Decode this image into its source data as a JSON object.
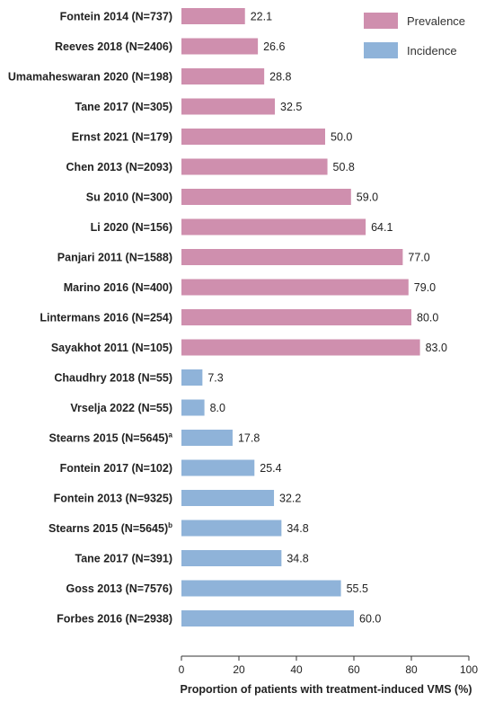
{
  "chart_data": {
    "type": "bar",
    "orientation": "horizontal",
    "xlabel": "Proportion of patients with treatment-induced VMS (%)",
    "xlim": [
      0,
      100
    ],
    "xticks": [
      0,
      20,
      40,
      60,
      80,
      100
    ],
    "legend": {
      "placement": "top-right",
      "entries": [
        {
          "name": "Prevalence",
          "color": "#cf8fae"
        },
        {
          "name": "Incidence",
          "color": "#8fb3d9"
        }
      ]
    },
    "categories": [
      {
        "label": "Fontein 2014 (N=737)",
        "sup": "",
        "value": 22.1,
        "value_label": "22.1",
        "group": "Prevalence"
      },
      {
        "label": "Reeves 2018 (N=2406)",
        "sup": "",
        "value": 26.6,
        "value_label": "26.6",
        "group": "Prevalence"
      },
      {
        "label": "Umamaheswaran 2020 (N=198)",
        "sup": "",
        "value": 28.8,
        "value_label": "28.8",
        "group": "Prevalence"
      },
      {
        "label": "Tane 2017 (N=305)",
        "sup": "",
        "value": 32.5,
        "value_label": "32.5",
        "group": "Prevalence"
      },
      {
        "label": "Ernst 2021 (N=179)",
        "sup": "",
        "value": 50.0,
        "value_label": "50.0",
        "group": "Prevalence"
      },
      {
        "label": "Chen 2013 (N=2093)",
        "sup": "",
        "value": 50.8,
        "value_label": "50.8",
        "group": "Prevalence"
      },
      {
        "label": "Su 2010 (N=300)",
        "sup": "",
        "value": 59.0,
        "value_label": "59.0",
        "group": "Prevalence"
      },
      {
        "label": "Li 2020 (N=156)",
        "sup": "",
        "value": 64.1,
        "value_label": "64.1",
        "group": "Prevalence"
      },
      {
        "label": "Panjari 2011 (N=1588)",
        "sup": "",
        "value": 77.0,
        "value_label": "77.0",
        "group": "Prevalence"
      },
      {
        "label": "Marino 2016 (N=400)",
        "sup": "",
        "value": 79.0,
        "value_label": "79.0",
        "group": "Prevalence"
      },
      {
        "label": "Lintermans 2016 (N=254)",
        "sup": "",
        "value": 80.0,
        "value_label": "80.0",
        "group": "Prevalence"
      },
      {
        "label": "Sayakhot 2011 (N=105)",
        "sup": "",
        "value": 83.0,
        "value_label": "83.0",
        "group": "Prevalence"
      },
      {
        "label": "Chaudhry 2018 (N=55)",
        "sup": "",
        "value": 7.3,
        "value_label": "7.3",
        "group": "Incidence"
      },
      {
        "label": "Vrselja 2022 (N=55)",
        "sup": "",
        "value": 8.0,
        "value_label": "8.0",
        "group": "Incidence"
      },
      {
        "label": "Stearns 2015 (N=5645)",
        "sup": "a",
        "value": 17.8,
        "value_label": "17.8",
        "group": "Incidence"
      },
      {
        "label": "Fontein 2017 (N=102)",
        "sup": "",
        "value": 25.4,
        "value_label": "25.4",
        "group": "Incidence"
      },
      {
        "label": "Fontein 2013 (N=9325)",
        "sup": "",
        "value": 32.2,
        "value_label": "32.2",
        "group": "Incidence"
      },
      {
        "label": "Stearns 2015 (N=5645)",
        "sup": "b",
        "value": 34.8,
        "value_label": "34.8",
        "group": "Incidence"
      },
      {
        "label": "Tane 2017 (N=391)",
        "sup": "",
        "value": 34.8,
        "value_label": "34.8",
        "group": "Incidence"
      },
      {
        "label": "Goss 2013 (N=7576)",
        "sup": "",
        "value": 55.5,
        "value_label": "55.5",
        "group": "Incidence"
      },
      {
        "label": "Forbes 2016 (N=2938)",
        "sup": "",
        "value": 60.0,
        "value_label": "60.0",
        "group": "Incidence"
      }
    ]
  }
}
